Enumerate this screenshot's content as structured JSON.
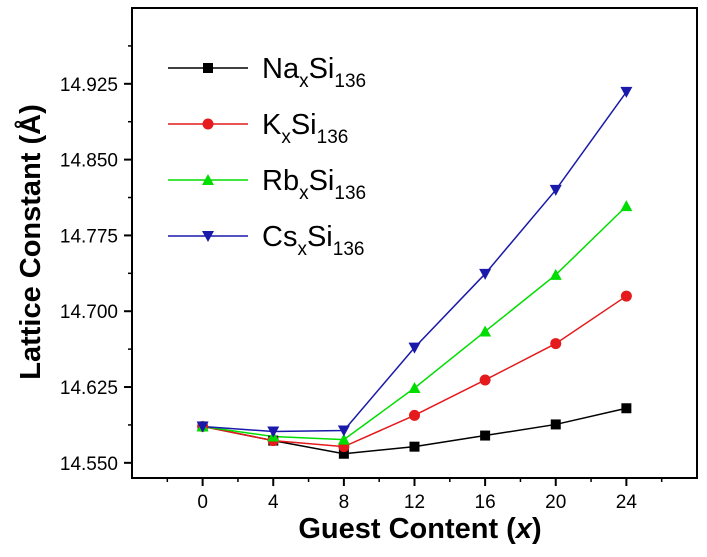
{
  "chart_data": {
    "type": "line",
    "xlabel_main": "Guest Content (",
    "xlabel_var": "x",
    "xlabel_end": ")",
    "ylabel": "Lattice Constant (Å)",
    "x": [
      0,
      4,
      8,
      12,
      16,
      20,
      24
    ],
    "xlim": [
      -4,
      28
    ],
    "ylim": [
      14.535,
      15.0
    ],
    "x_ticks": [
      "0",
      "4",
      "8",
      "12",
      "16",
      "20",
      "24"
    ],
    "y_ticks": [
      "14.550",
      "14.625",
      "14.700",
      "14.775",
      "14.850",
      "14.925"
    ],
    "grid": false,
    "legend_position": "top-left",
    "series": [
      {
        "name_base": "Na",
        "name_sub1": "x",
        "name_mid": "Si",
        "name_sub2": "136",
        "color": "#000000",
        "marker": "square",
        "values": [
          14.586,
          14.572,
          14.559,
          14.566,
          14.577,
          14.588,
          14.604
        ]
      },
      {
        "name_base": "K",
        "name_sub1": "x",
        "name_mid": "Si",
        "name_sub2": "136",
        "color": "#e41a1c",
        "marker": "circle",
        "values": [
          14.586,
          14.572,
          14.566,
          14.597,
          14.632,
          14.668,
          14.715
        ]
      },
      {
        "name_base": "Rb",
        "name_sub1": "x",
        "name_mid": "Si",
        "name_sub2": "136",
        "color": "#00dd00",
        "marker": "triangle-up",
        "values": [
          14.586,
          14.576,
          14.573,
          14.624,
          14.68,
          14.736,
          14.804
        ]
      },
      {
        "name_base": "Cs",
        "name_sub1": "x",
        "name_mid": "Si",
        "name_sub2": "136",
        "color": "#1a1aaa",
        "marker": "triangle-down",
        "values": [
          14.586,
          14.581,
          14.582,
          14.664,
          14.737,
          14.82,
          14.917
        ]
      }
    ]
  }
}
